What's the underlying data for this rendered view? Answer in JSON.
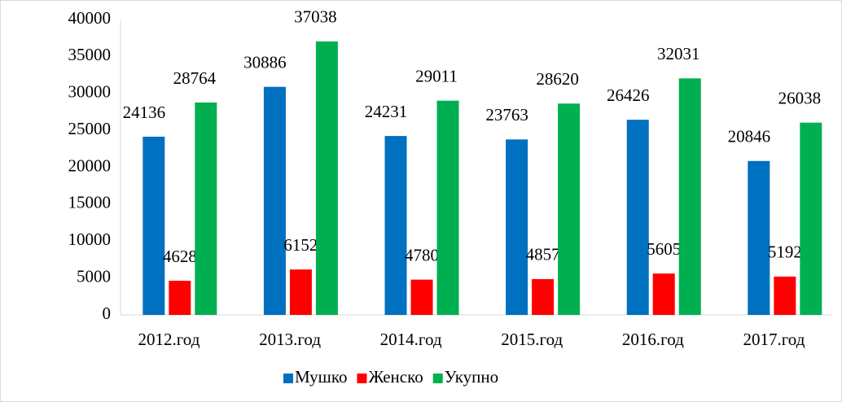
{
  "chart_data": {
    "type": "bar",
    "categories": [
      "2012.год",
      "2013.год",
      "2014.год",
      "2015.год",
      "2016.год",
      "2017.год"
    ],
    "series": [
      {
        "name": "Мушко",
        "color": "#0070c0",
        "values": [
          24136,
          30886,
          24231,
          23763,
          26426,
          20846
        ]
      },
      {
        "name": "Женско",
        "color": "#ff0000",
        "values": [
          4628,
          6152,
          4780,
          4857,
          5605,
          5192
        ]
      },
      {
        "name": "Укупно",
        "color": "#00b050",
        "values": [
          28764,
          37038,
          29011,
          28620,
          32031,
          26038
        ]
      }
    ],
    "ylim": [
      0,
      40000
    ],
    "yticks": [
      0,
      5000,
      10000,
      15000,
      20000,
      25000,
      30000,
      35000,
      40000
    ],
    "grid": false,
    "legend": "bottom"
  }
}
